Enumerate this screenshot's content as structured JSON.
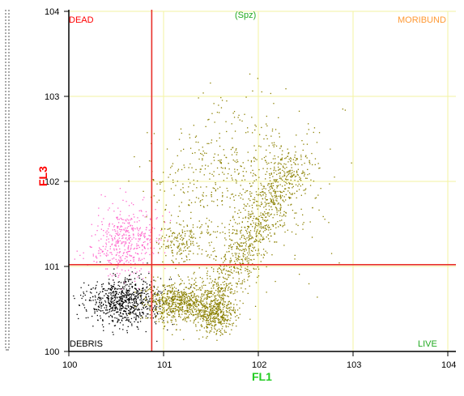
{
  "chart_data": {
    "type": "scatter",
    "title": "(Spz)",
    "xlabel": "FL1",
    "ylabel": "FL3",
    "x_scale": "log",
    "y_scale": "log",
    "xlim": [
      1,
      10000
    ],
    "ylim": [
      1,
      10000
    ],
    "x_tick_labels": [
      "100",
      "101",
      "102",
      "103",
      "104"
    ],
    "y_tick_labels": [
      "100",
      "101",
      "102",
      "103",
      "104"
    ],
    "grid": true,
    "gates": {
      "x": 7.5,
      "y": 10.5
    },
    "quadrants": {
      "top_left": "DEAD",
      "top_right": "MORIBUND",
      "bottom_left": "DEBRIS",
      "bottom_right": "LIVE"
    },
    "populations": [
      {
        "name": "dead",
        "color": "#ff66cc",
        "center": [
          4.0,
          20.0
        ],
        "spread": [
          0.18,
          0.2
        ],
        "count": 450
      },
      {
        "name": "debris",
        "color": "#000000",
        "center": [
          3.8,
          3.9
        ],
        "spread": [
          0.2,
          0.14
        ],
        "count": 750
      },
      {
        "name": "live-cluster-1",
        "color": "#8b8000",
        "center": [
          14.0,
          3.8
        ],
        "spread": [
          0.17,
          0.12
        ],
        "count": 650
      },
      {
        "name": "live-cluster-2",
        "color": "#8b8000",
        "center": [
          35.0,
          2.8
        ],
        "spread": [
          0.11,
          0.11
        ],
        "count": 380
      },
      {
        "name": "live-diagonal",
        "color": "#8b8000",
        "segment": [
          [
            30.0,
            3.0
          ],
          [
            250.0,
            200.0
          ]
        ],
        "spread": 0.12,
        "count": 900
      },
      {
        "name": "moribund-cloud",
        "color": "#8b8000",
        "center": [
          60.0,
          90.0
        ],
        "spread": [
          0.45,
          0.45
        ],
        "count": 650
      },
      {
        "name": "moribund-cluster",
        "color": "#8b8000",
        "center": [
          15.0,
          20.0
        ],
        "spread": [
          0.12,
          0.12
        ],
        "count": 150
      }
    ]
  },
  "colors": {
    "gate": "#e8312a",
    "grid": "#f3f3a0",
    "dead_label": "#ff0000",
    "title": "#22aa22",
    "moribund_label": "#ff9933",
    "axis_title_x": "#22cc22",
    "axis_title_y": "#ff0000"
  }
}
